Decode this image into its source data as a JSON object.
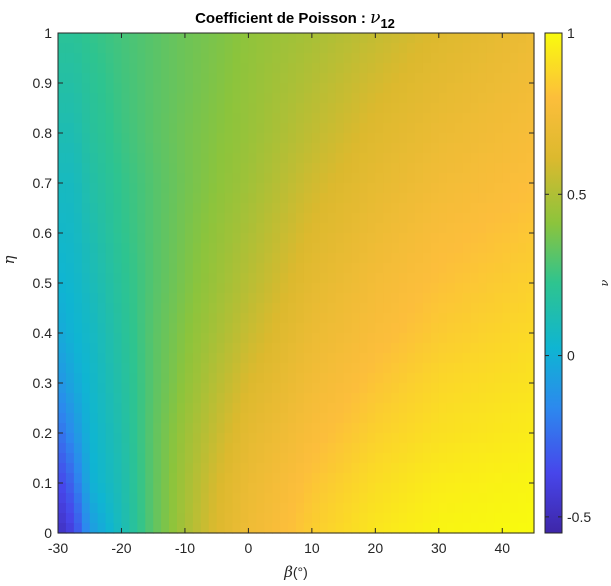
{
  "chart_data": {
    "type": "heatmap",
    "title": "Coefficient de Poisson : ",
    "title_symbol": "ν",
    "title_subscript": "12",
    "xlabel_symbol": "β",
    "xlabel_unit": "(°)",
    "ylabel": "η",
    "colorbar_label": "ν",
    "xlim": [
      -30,
      45
    ],
    "ylim": [
      0,
      1
    ],
    "xticks": [
      "-30",
      "-20",
      "-10",
      "0",
      "10",
      "20",
      "30",
      "40"
    ],
    "xtick_values": [
      -30,
      -20,
      -10,
      0,
      10,
      20,
      30,
      40
    ],
    "yticks": [
      "0",
      "0.1",
      "0.2",
      "0.3",
      "0.4",
      "0.5",
      "0.6",
      "0.7",
      "0.8",
      "0.9",
      "1"
    ],
    "ytick_values": [
      0,
      0.1,
      0.2,
      0.3,
      0.4,
      0.5,
      0.6,
      0.7,
      0.8,
      0.9,
      1
    ],
    "colorbar_range": [
      -0.55,
      1
    ],
    "colorbar_ticks": [
      "-0.5",
      "0",
      "0.5",
      "1"
    ],
    "colorbar_tick_values": [
      -0.5,
      0,
      0.5,
      1
    ],
    "colormap": "parula",
    "grid": false,
    "x": [
      -30,
      -27.5,
      -25,
      -20,
      -15,
      -10,
      -5,
      0,
      10,
      20,
      30,
      45
    ],
    "y": [
      0,
      0.1,
      0.2,
      0.3,
      0.4,
      0.5,
      0.6,
      0.7,
      0.8,
      0.9,
      1
    ],
    "z": [
      [
        -0.5,
        -0.38,
        -0.1,
        0.1,
        0.32,
        0.48,
        0.62,
        0.72,
        0.85,
        0.93,
        0.98,
        1.0
      ],
      [
        -0.38,
        -0.25,
        0.0,
        0.12,
        0.32,
        0.47,
        0.6,
        0.7,
        0.82,
        0.9,
        0.95,
        0.98
      ],
      [
        -0.25,
        -0.12,
        0.02,
        0.14,
        0.32,
        0.45,
        0.56,
        0.66,
        0.78,
        0.86,
        0.91,
        0.95
      ],
      [
        -0.12,
        -0.03,
        0.04,
        0.16,
        0.31,
        0.42,
        0.52,
        0.61,
        0.74,
        0.82,
        0.88,
        0.92
      ],
      [
        -0.03,
        0.02,
        0.06,
        0.18,
        0.31,
        0.4,
        0.48,
        0.56,
        0.7,
        0.78,
        0.84,
        0.89
      ],
      [
        0.02,
        0.04,
        0.09,
        0.2,
        0.3,
        0.38,
        0.45,
        0.52,
        0.66,
        0.75,
        0.81,
        0.86
      ],
      [
        0.05,
        0.06,
        0.12,
        0.22,
        0.3,
        0.37,
        0.43,
        0.49,
        0.62,
        0.71,
        0.78,
        0.83
      ],
      [
        0.08,
        0.08,
        0.15,
        0.23,
        0.3,
        0.36,
        0.41,
        0.46,
        0.58,
        0.67,
        0.74,
        0.8
      ],
      [
        0.12,
        0.12,
        0.18,
        0.25,
        0.31,
        0.36,
        0.4,
        0.44,
        0.54,
        0.63,
        0.7,
        0.77
      ],
      [
        0.16,
        0.16,
        0.2,
        0.26,
        0.31,
        0.35,
        0.39,
        0.43,
        0.51,
        0.59,
        0.66,
        0.74
      ],
      [
        0.2,
        0.2,
        0.23,
        0.27,
        0.31,
        0.35,
        0.38,
        0.42,
        0.48,
        0.55,
        0.62,
        0.71
      ]
    ]
  }
}
